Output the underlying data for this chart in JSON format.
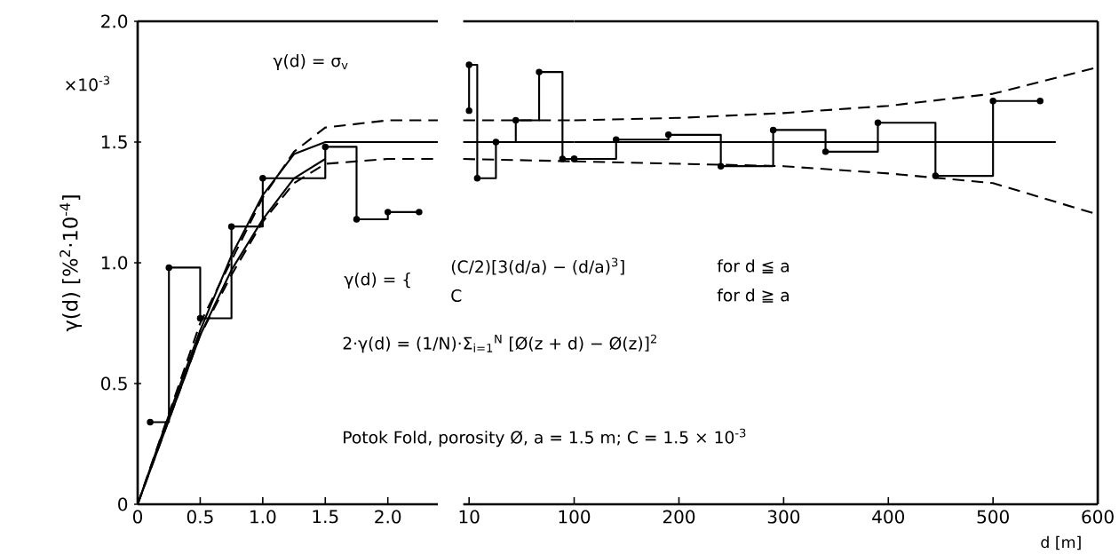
{
  "chart_data": [
    {
      "type": "line",
      "ylabel": "γ(d) [%$^{2}$·10$^{-4}$]",
      "xlim": [
        0,
        2.4
      ],
      "ylim": [
        0,
        2.0
      ],
      "xticks": [
        0,
        0.5,
        {
          "value": 1,
          "label": "1.0"
        },
        1.5,
        {
          "value": 2,
          "label": "2.0"
        }
      ],
      "yticks": [
        0,
        0.5,
        {
          "value": 1,
          "label": "1.0"
        },
        1.5,
        {
          "value": 2,
          "label": "2.0"
        }
      ],
      "annotations": [
        "×10$^{-3}$",
        "γ(d) = σ$_{v}$",
        "γ(d) = {",
        "(C/2)[3(d/a) − (d/a)$^{3}$]",
        "for d ≦ a",
        "C",
        "for d ≧ a",
        "2·γ(d) = (1/N)·Σ$_{i=1}$$^{N}$ [Ø(z + d) − Ø(z)]$^{2}$",
        "Potok Fold, porosity Ø, a = 1.5 m; C = 1.5 × 10$^{-3}$"
      ],
      "series": [
        {
          "type": "step",
          "color": "#000000",
          "marker": "circle",
          "x": [
            0.1,
            0.25,
            0.5,
            0.75,
            1.0,
            1.5,
            1.75,
            2.0,
            2.25
          ],
          "values": [
            0.34,
            0.98,
            0.77,
            1.15,
            1.35,
            1.48,
            1.18,
            1.21,
            1.21
          ]
        },
        {
          "color": "#000000",
          "line_style": "solid",
          "x": [
            0,
            0.25,
            0.5,
            0.75,
            1.0,
            1.25,
            1.5,
            2.4
          ],
          "values": [
            0,
            0.37,
            0.72,
            1.03,
            1.28,
            1.45,
            1.5,
            1.5
          ]
        },
        {
          "color": "#000000",
          "line_style": "solid",
          "x": [
            0,
            0.5,
            0.75,
            1.0,
            1.25,
            1.5
          ],
          "values": [
            0,
            0.7,
            0.97,
            1.18,
            1.35,
            1.43
          ]
        },
        {
          "color": "#000000",
          "line_style": "dashed",
          "x": [
            0,
            0.5,
            0.75,
            1.0,
            1.25,
            1.5,
            2.0,
            2.4
          ],
          "values": [
            0,
            0.75,
            1.01,
            1.27,
            1.46,
            1.56,
            1.59,
            1.59
          ]
        },
        {
          "color": "#000000",
          "line_style": "dashed",
          "x": [
            0,
            0.5,
            0.75,
            1.0,
            1.25,
            1.5,
            2.0,
            2.4
          ],
          "values": [
            0,
            0.7,
            0.95,
            1.17,
            1.33,
            1.41,
            1.43,
            1.43
          ]
        }
      ]
    },
    {
      "type": "line",
      "xlim": [
        5,
        100
      ],
      "ylim": [
        0,
        2.0
      ],
      "xticks": [
        10,
        100
      ],
      "tick_labels": "x",
      "series": [
        {
          "type": "step",
          "color": "#000000",
          "marker": "circle",
          "x": [
            10,
            10,
            17,
            33,
            50,
            70,
            90,
            100
          ],
          "values": [
            1.63,
            1.82,
            1.35,
            1.5,
            1.59,
            1.79,
            1.43,
            1.43
          ]
        },
        {
          "color": "#000000",
          "line_style": "solid",
          "x": [
            5,
            100
          ],
          "values": [
            1.5,
            1.5
          ]
        },
        {
          "color": "#000000",
          "line_style": "dashed",
          "x": [
            5,
            100
          ],
          "values": [
            1.59,
            1.59
          ]
        },
        {
          "color": "#000000",
          "line_style": "dashed",
          "x": [
            5,
            100
          ],
          "values": [
            1.43,
            1.42
          ]
        }
      ]
    },
    {
      "type": "line",
      "xlabel": "d [m]",
      "xlim": [
        100,
        600
      ],
      "ylim": [
        0,
        2.0
      ],
      "xticks": [
        200,
        300,
        400,
        500,
        600
      ],
      "tick_labels": "x",
      "series": [
        {
          "type": "step",
          "color": "#000000",
          "marker": "circle",
          "x": [
            100,
            140,
            190,
            240,
            290,
            340,
            390,
            445,
            500,
            545
          ],
          "values": [
            1.43,
            1.51,
            1.53,
            1.4,
            1.55,
            1.46,
            1.58,
            1.36,
            1.67,
            1.67
          ]
        },
        {
          "color": "#000000",
          "line_style": "solid",
          "x": [
            100,
            560
          ],
          "values": [
            1.5,
            1.5
          ]
        },
        {
          "color": "#000000",
          "line_style": "dashed",
          "x": [
            100,
            200,
            300,
            400,
            500,
            600
          ],
          "values": [
            1.59,
            1.6,
            1.62,
            1.65,
            1.7,
            1.81
          ]
        },
        {
          "color": "#000000",
          "line_style": "dashed",
          "x": [
            100,
            200,
            300,
            400,
            500,
            600
          ],
          "values": [
            1.42,
            1.41,
            1.4,
            1.37,
            1.33,
            1.2
          ]
        }
      ]
    }
  ]
}
